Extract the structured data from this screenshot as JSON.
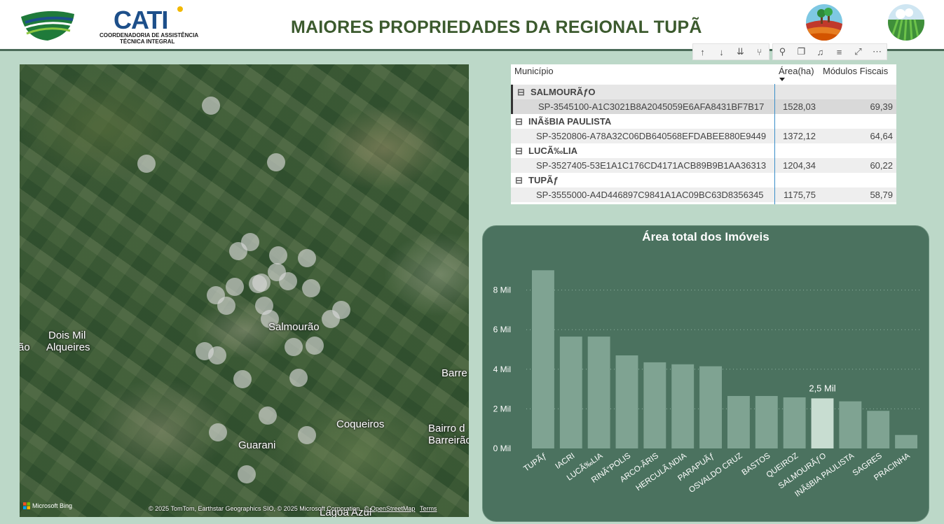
{
  "header": {
    "title": "MAIORES PROPRIEDADES DA REGIONAL TUPÃ",
    "logo_text": "CATI",
    "logo_sub1": "COORDENADORIA DE ASSISTÊNCIA",
    "logo_sub2": "TÉCNICA INTEGRAL"
  },
  "map": {
    "places": [
      "Dois Mil",
      "Alqueires",
      "ão",
      "Salmourão",
      "Barre",
      "Coqueiros",
      "Bairro d",
      "Barreirão",
      "Guarani",
      "Lagoa Azul"
    ],
    "bing_label": "Microsoft Bing",
    "attribution": "© 2025 TomTom, Earthstar Geographics SIO, © 2025 Microsoft Corporation",
    "osm_link": "© OpenStreetMap",
    "terms_link": "Terms"
  },
  "toolbar": {
    "icons": [
      "arrow-up-icon",
      "arrow-down-icon",
      "double-arrow-down-icon",
      "expand-hierarchy-icon",
      "pin-icon",
      "copy-icon",
      "bell-icon",
      "filter-icon",
      "focus-mode-icon",
      "more-options-icon"
    ],
    "glyphs": [
      "↑",
      "↓",
      "⇊",
      "⑂",
      "⚲",
      "❐",
      "♫",
      "≡",
      "⤢",
      "⋯"
    ]
  },
  "table": {
    "columns": [
      "Município",
      "Área(ha)",
      "Módulos Fiscais"
    ],
    "groups": [
      {
        "name": "SALMOURÃƒO",
        "rows": [
          {
            "id": "SP-3545100-A1C3021B8A2045059E6AFA8431BF7B17",
            "area": "1528,03",
            "modulos": "69,39"
          }
        ]
      },
      {
        "name": "INÃšBIA PAULISTA",
        "rows": [
          {
            "id": "SP-3520806-A78A32C06DB640568EFDABEE880E9449",
            "area": "1372,12",
            "modulos": "64,64"
          }
        ]
      },
      {
        "name": "LUCÃ‰LIA",
        "rows": [
          {
            "id": "SP-3527405-53E1A1C176CD4171ACB89B9B1AA36313",
            "area": "1204,34",
            "modulos": "60,22"
          }
        ]
      },
      {
        "name": "TUPÃƒ",
        "rows": [
          {
            "id": "SP-3555000-A4D446897C9841A1AC09BC63D8356345",
            "area": "1175,75",
            "modulos": "58,79"
          }
        ]
      }
    ]
  },
  "chart_data": {
    "type": "bar",
    "title": "Área total dos Imóveis",
    "categories": [
      "TUPÃƒ",
      "IACRI",
      "LUCÃ‰LIA",
      "RINÃ“POLIS",
      "ARCO-ÃRIS",
      "HERCULÃ‚NDIA",
      "PARAPUÃƒ",
      "OSVALDO CRUZ",
      "BASTOS",
      "QUEIROZ",
      "SALMOURÃƒO",
      "INÃšBIA PAULISTA",
      "SAGRES",
      "PRACINHA"
    ],
    "values": [
      9000,
      5650,
      5650,
      4700,
      4350,
      4250,
      4150,
      2650,
      2650,
      2580,
      2530,
      2380,
      1900,
      680
    ],
    "highlighted_index": 10,
    "data_label": "2,5 Mil",
    "y_ticks": [
      "0 Mil",
      "2 Mil",
      "4 Mil",
      "6 Mil",
      "8 Mil"
    ],
    "y_tick_values": [
      0,
      2000,
      4000,
      6000,
      8000
    ],
    "ylim": [
      0,
      9400
    ],
    "grid": true,
    "colors": {
      "bar": "#7fa392",
      "highlight": "#c8ddd1",
      "background": "#4b725f"
    }
  }
}
